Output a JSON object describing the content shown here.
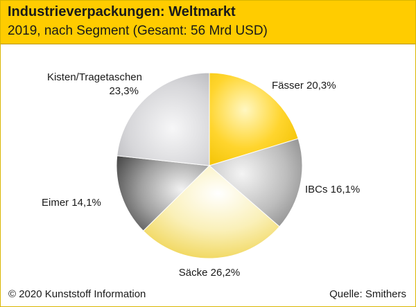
{
  "header": {
    "title": "Industrieverpackungen: Weltmarkt",
    "subtitle": "2019, nach Segment (Gesamt: 56 Mrd USD)"
  },
  "footer": {
    "copyright": "© 2020 Kunststoff Information",
    "source": "Quelle: Smithers"
  },
  "chart_data": {
    "type": "pie",
    "title": "Industrieverpackungen: Weltmarkt",
    "subtitle": "2019, nach Segment (Gesamt: 56 Mrd USD)",
    "slices": [
      {
        "label": "Fässer",
        "value": 20.3,
        "display": "Fässer 20,3%",
        "color": "#ffcc00"
      },
      {
        "label": "IBCs",
        "value": 16.1,
        "display": "IBCs 16,1%",
        "color": "#a8a8a8"
      },
      {
        "label": "Säcke",
        "value": 26.2,
        "display": "Säcke 26,2%",
        "color": "#f4dd6a"
      },
      {
        "label": "Eimer",
        "value": 14.1,
        "display": "Eimer 14,1%",
        "color": "#6e6e6e"
      },
      {
        "label": "Kisten/Tragetaschen",
        "value": 23.3,
        "display_line1": "Kisten/Tragetaschen",
        "display_line2": "23,3%",
        "color": "#c9c9cc"
      }
    ]
  }
}
